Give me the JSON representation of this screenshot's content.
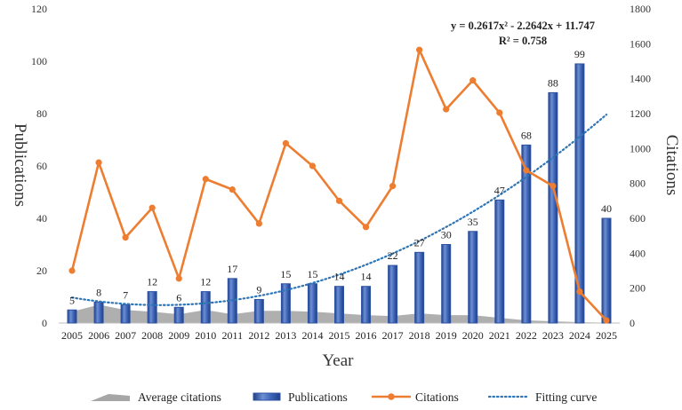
{
  "chart_data": {
    "type": "bar",
    "title": "",
    "xlabel": "Year",
    "ylabel": "Publications",
    "y2label": "Citations",
    "ylim": [
      0,
      120
    ],
    "y2lim": [
      0,
      1800
    ],
    "yticks": [
      "0",
      "20",
      "40",
      "60",
      "80",
      "100",
      "120"
    ],
    "y2ticks": [
      "0",
      "200",
      "400",
      "600",
      "800",
      "1000",
      "1200",
      "1400",
      "1600",
      "1800"
    ],
    "categories": [
      "2005",
      "2006",
      "2007",
      "2008",
      "2009",
      "2010",
      "2011",
      "2012",
      "2013",
      "2014",
      "2015",
      "2016",
      "2017",
      "2018",
      "2019",
      "2020",
      "2021",
      "2022",
      "2023",
      "2024",
      "2025"
    ],
    "series": [
      {
        "name": "Average citations",
        "type": "area",
        "axis": "right",
        "values": [
          65,
          105,
          75,
          65,
          50,
          75,
          50,
          70,
          70,
          65,
          55,
          45,
          40,
          55,
          45,
          45,
          30,
          15,
          10,
          5,
          2
        ]
      },
      {
        "name": "Publications",
        "type": "bar",
        "axis": "left",
        "values": [
          5,
          8,
          7,
          12,
          6,
          12,
          17,
          9,
          15,
          15,
          14,
          14,
          22,
          27,
          30,
          35,
          47,
          68,
          88,
          99,
          40
        ]
      },
      {
        "name": "Citations",
        "type": "line",
        "axis": "right",
        "values": [
          300,
          920,
          490,
          660,
          255,
          825,
          765,
          570,
          1030,
          900,
          700,
          550,
          785,
          1565,
          1225,
          1390,
          1205,
          875,
          785,
          180,
          15
        ]
      },
      {
        "name": "Fitting curve",
        "type": "dotted-line",
        "axis": "left",
        "coefficients": [
          0.2617,
          -2.2642,
          11.747
        ]
      }
    ],
    "equation": "y = 0.2617x² - 2.2642x + 11.747",
    "r_squared": "R² = 0.758",
    "legend_position": "bottom",
    "colors": {
      "area": "#a6a6a6",
      "bar": "#2f52a0",
      "bar_light": "#6d8fd4",
      "citations": "#ed7d31",
      "fit": "#2e75b6",
      "axis": "#bfbfbf"
    }
  }
}
